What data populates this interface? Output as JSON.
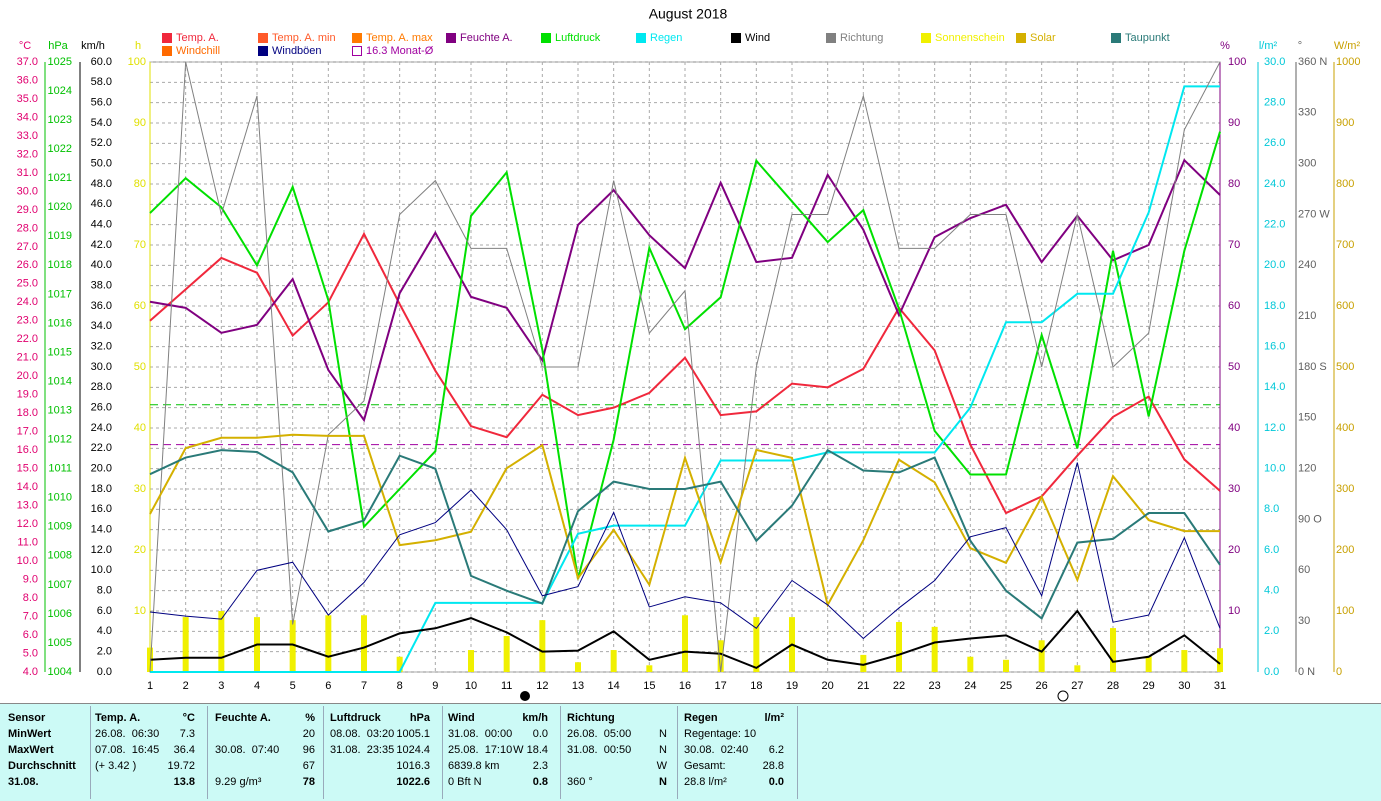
{
  "chart_data": {
    "type": "line",
    "title": "August 2018",
    "x": [
      1,
      2,
      3,
      4,
      5,
      6,
      7,
      8,
      9,
      10,
      11,
      12,
      13,
      14,
      15,
      16,
      17,
      18,
      19,
      20,
      21,
      22,
      23,
      24,
      25,
      26,
      27,
      28,
      29,
      30,
      31
    ],
    "xlim": [
      1,
      31
    ],
    "grid": true,
    "axes": [
      {
        "unit": "°C",
        "color": "#e0006f",
        "ylim": [
          4,
          37
        ],
        "yticks": [
          {
            "value": 4,
            "label": "4.0"
          },
          {
            "value": 5,
            "label": "5.0"
          },
          {
            "value": 6,
            "label": "6.0"
          },
          {
            "value": 7,
            "label": "7.0"
          },
          {
            "value": 8,
            "label": "8.0"
          },
          {
            "value": 9,
            "label": "9.0"
          },
          {
            "value": 10,
            "label": "10.0"
          },
          {
            "value": 11,
            "label": "11.0"
          },
          {
            "value": 12,
            "label": "12.0"
          },
          {
            "value": 13,
            "label": "13.0"
          },
          {
            "value": 14,
            "label": "14.0"
          },
          {
            "value": 15,
            "label": "15.0"
          },
          {
            "value": 16,
            "label": "16.0"
          },
          {
            "value": 17,
            "label": "17.0"
          },
          {
            "value": 18,
            "label": "18.0"
          },
          {
            "value": 19,
            "label": "19.0"
          },
          {
            "value": 20,
            "label": "20.0"
          },
          {
            "value": 21,
            "label": "21.0"
          },
          {
            "value": 22,
            "label": "22.0"
          },
          {
            "value": 23,
            "label": "23.0"
          },
          {
            "value": 24,
            "label": "24.0"
          },
          {
            "value": 25,
            "label": "25.0"
          },
          {
            "value": 26,
            "label": "26.0"
          },
          {
            "value": 27,
            "label": "27.0"
          },
          {
            "value": 28,
            "label": "28.0"
          },
          {
            "value": 29,
            "label": "29.0"
          },
          {
            "value": 30,
            "label": "30.0"
          },
          {
            "value": 31,
            "label": "31.0"
          },
          {
            "value": 32,
            "label": "32.0"
          },
          {
            "value": 33,
            "label": "33.0"
          },
          {
            "value": 34,
            "label": "34.0"
          },
          {
            "value": 35,
            "label": "35.0"
          },
          {
            "value": 36,
            "label": "36.0"
          },
          {
            "value": 37,
            "label": "37.0"
          }
        ]
      },
      {
        "unit": "hPa",
        "color": "#00c000",
        "ylim": [
          1004,
          1025
        ],
        "yticks": [
          1004,
          1005,
          1006,
          1007,
          1008,
          1009,
          1010,
          1011,
          1012,
          1013,
          1014,
          1015,
          1016,
          1017,
          1018,
          1019,
          1020,
          1021,
          1022,
          1023,
          1024,
          1025
        ]
      },
      {
        "unit": "km/h",
        "color": "#000000",
        "ylim": [
          0,
          60
        ],
        "yticks": [
          {
            "value": 0,
            "label": "0.0"
          },
          {
            "value": 2,
            "label": "2.0"
          },
          {
            "value": 4,
            "label": "4.0"
          },
          {
            "value": 6,
            "label": "6.0"
          },
          {
            "value": 8,
            "label": "8.0"
          },
          {
            "value": 10,
            "label": "10.0"
          },
          {
            "value": 12,
            "label": "12.0"
          },
          {
            "value": 14,
            "label": "14.0"
          },
          {
            "value": 16,
            "label": "16.0"
          },
          {
            "value": 18,
            "label": "18.0"
          },
          {
            "value": 20,
            "label": "20.0"
          },
          {
            "value": 22,
            "label": "22.0"
          },
          {
            "value": 24,
            "label": "24.0"
          },
          {
            "value": 26,
            "label": "26.0"
          },
          {
            "value": 28,
            "label": "28.0"
          },
          {
            "value": 30,
            "label": "30.0"
          },
          {
            "value": 32,
            "label": "32.0"
          },
          {
            "value": 34,
            "label": "34.0"
          },
          {
            "value": 36,
            "label": "36.0"
          },
          {
            "value": 38,
            "label": "38.0"
          },
          {
            "value": 40,
            "label": "40.0"
          },
          {
            "value": 42,
            "label": "42.0"
          },
          {
            "value": 44,
            "label": "44.0"
          },
          {
            "value": 46,
            "label": "46.0"
          },
          {
            "value": 48,
            "label": "48.0"
          },
          {
            "value": 50,
            "label": "50.0"
          },
          {
            "value": 52,
            "label": "52.0"
          },
          {
            "value": 54,
            "label": "54.0"
          },
          {
            "value": 56,
            "label": "56.0"
          },
          {
            "value": 58,
            "label": "58.0"
          },
          {
            "value": 60,
            "label": "60.0"
          }
        ]
      },
      {
        "unit": "h",
        "color": "#e0e000",
        "ylim": [
          0,
          100
        ],
        "yticks": [
          10,
          20,
          30,
          40,
          50,
          60,
          70,
          80,
          90,
          100
        ]
      },
      {
        "unit": "%",
        "color": "#800080",
        "ylim": [
          0,
          100
        ],
        "yticks": [
          10,
          20,
          30,
          40,
          50,
          60,
          70,
          80,
          90,
          100
        ]
      },
      {
        "unit": "l/m²",
        "color": "#00c8d8",
        "ylim": [
          0,
          30
        ],
        "yticks": [
          {
            "value": 0,
            "label": "0.0"
          },
          {
            "value": 2,
            "label": "2.0"
          },
          {
            "value": 4,
            "label": "4.0"
          },
          {
            "value": 6,
            "label": "6.0"
          },
          {
            "value": 8,
            "label": "8.0"
          },
          {
            "value": 10,
            "label": "10.0"
          },
          {
            "value": 12,
            "label": "12.0"
          },
          {
            "value": 14,
            "label": "14.0"
          },
          {
            "value": 16,
            "label": "16.0"
          },
          {
            "value": 18,
            "label": "18.0"
          },
          {
            "value": 20,
            "label": "20.0"
          },
          {
            "value": 22,
            "label": "22.0"
          },
          {
            "value": 24,
            "label": "24.0"
          },
          {
            "value": 26,
            "label": "26.0"
          },
          {
            "value": 28,
            "label": "28.0"
          },
          {
            "value": 30,
            "label": "30.0"
          }
        ]
      },
      {
        "unit": "°",
        "color": "#606060",
        "ylim": [
          0,
          360
        ],
        "yticks": [
          {
            "value": 0,
            "label": "0 N"
          },
          30,
          60,
          {
            "value": 90,
            "label": "90 O"
          },
          120,
          150,
          {
            "value": 180,
            "label": "180 S"
          },
          210,
          240,
          {
            "value": 270,
            "label": "270 W"
          },
          300,
          330,
          {
            "value": 360,
            "label": "360 N"
          }
        ]
      },
      {
        "unit": "W/m²",
        "color": "#c8a000",
        "ylim": [
          0,
          1000
        ],
        "yticks": [
          0,
          100,
          200,
          300,
          400,
          500,
          600,
          700,
          800,
          900,
          1000
        ]
      }
    ],
    "series": [
      {
        "name": "Temp. A.",
        "color": "#f0283c",
        "axis": 0,
        "type": "line",
        "values": [
          23.0,
          24.7,
          26.4,
          25.6,
          22.2,
          24.0,
          27.7,
          23.9,
          20.3,
          17.3,
          16.7,
          19.0,
          17.9,
          18.3,
          19.1,
          21.0,
          17.9,
          18.1,
          19.6,
          19.4,
          20.4,
          23.7,
          21.4,
          16.3,
          12.6,
          13.5,
          15.7,
          17.8,
          18.9,
          15.5,
          13.8
        ]
      },
      {
        "name": "Feuchte A.",
        "color": "#800080",
        "axis": 4,
        "type": "line",
        "values": [
          60.7,
          59.7,
          55.6,
          56.9,
          64.4,
          49.5,
          41.3,
          62.1,
          72.0,
          61.5,
          59.7,
          51.1,
          73.3,
          79.0,
          71.6,
          66.2,
          80.2,
          67.2,
          67.9,
          81.5,
          72.5,
          58.5,
          71.3,
          74.4,
          76.6,
          67.2,
          74.8,
          67.5,
          70.0,
          83.9,
          78.2
        ]
      },
      {
        "name": "Luftdruck",
        "color": "#00e000",
        "axis": 1,
        "type": "line",
        "values": [
          1019.8,
          1021.0,
          1020.0,
          1018.0,
          1020.7,
          1016.8,
          1009.0,
          1010.3,
          1011.6,
          1019.7,
          1021.2,
          1015.1,
          1007.2,
          1012.0,
          1018.6,
          1015.8,
          1016.9,
          1021.6,
          1020.2,
          1018.8,
          1019.9,
          1016.5,
          1012.3,
          1010.8,
          1010.8,
          1015.6,
          1011.7,
          1018.5,
          1012.8,
          1018.5,
          1022.6
        ]
      },
      {
        "name": "Regen",
        "color": "#00e8f0",
        "axis": 5,
        "type": "line",
        "values": [
          0,
          0,
          0,
          0,
          0,
          0,
          0,
          0,
          3.4,
          3.4,
          3.4,
          3.4,
          6.8,
          7.2,
          7.2,
          7.2,
          10.4,
          10.4,
          10.4,
          10.8,
          10.8,
          10.8,
          10.8,
          13.0,
          17.2,
          17.2,
          18.6,
          18.6,
          22.6,
          28.8,
          28.8
        ]
      },
      {
        "name": "Wind",
        "color": "#000000",
        "axis": 2,
        "type": "line",
        "values": [
          1.2,
          1.4,
          1.4,
          2.7,
          2.7,
          1.5,
          2.4,
          3.8,
          4.3,
          5.3,
          3.9,
          2.0,
          2.1,
          4.0,
          1.2,
          2.0,
          1.8,
          0.4,
          2.7,
          1.2,
          0.7,
          1.7,
          2.9,
          3.3,
          3.6,
          2.0,
          6.0,
          1.0,
          1.5,
          3.6,
          0.8
        ]
      },
      {
        "name": "Richtung",
        "color": "#808080",
        "axis": 6,
        "type": "line",
        "values": [
          0,
          360,
          270,
          340,
          28,
          140,
          160,
          270,
          290,
          250,
          250,
          180,
          180,
          290,
          200,
          225,
          0,
          180,
          270,
          270,
          340,
          250,
          250,
          270,
          270,
          180,
          270,
          180,
          200,
          320,
          360
        ]
      },
      {
        "name": "Sonnenschein",
        "color": "#f0f000",
        "axis": 3,
        "type": "bar",
        "values": [
          4,
          9,
          10,
          9,
          8.5,
          9.3,
          9.3,
          2.5,
          0,
          3.6,
          5.9,
          8.5,
          1.6,
          3.6,
          1.1,
          9.3,
          5.2,
          9,
          9,
          0,
          2.8,
          8.2,
          7.4,
          2.5,
          2,
          5.2,
          1.1,
          7.2,
          2.6,
          3.6,
          3.9
        ]
      },
      {
        "name": "Solar",
        "color": "#d4b000",
        "axis": 7,
        "type": "line",
        "values": [
          259,
          367,
          384,
          384,
          389,
          387,
          387,
          208,
          216,
          230,
          334,
          372,
          154,
          233,
          143,
          351,
          180,
          364,
          351,
          110,
          216,
          348,
          311,
          203,
          179,
          287,
          151,
          321,
          249,
          231,
          231
        ]
      },
      {
        "name": "Taupunkt",
        "color": "#2a7a78",
        "axis": 0,
        "type": "line",
        "values": [
          14.7,
          15.6,
          16.0,
          15.9,
          14.8,
          11.6,
          12.2,
          15.7,
          15.0,
          9.2,
          8.4,
          7.7,
          12.7,
          14.3,
          13.9,
          13.9,
          14.3,
          11.1,
          13.0,
          16.0,
          14.9,
          14.8,
          15.6,
          11.1,
          8.4,
          6.9,
          11.0,
          11.2,
          12.6,
          12.6,
          9.8
        ]
      },
      {
        "name": "Windböen",
        "color": "#000080",
        "axis": 2,
        "type": "line",
        "values": [
          5.9,
          5.5,
          5.2,
          10.0,
          10.8,
          5.6,
          8.8,
          13.5,
          14.7,
          17.9,
          14.0,
          7.5,
          8.4,
          15.7,
          6.4,
          7.4,
          6.8,
          4.3,
          9.0,
          6.6,
          3.3,
          6.3,
          9.0,
          13.3,
          14.2,
          7.5,
          20.6,
          4.9,
          5.6,
          13.2,
          4.3
        ]
      }
    ],
    "other_legend": [
      {
        "name": "Temp. A. min",
        "color": "#ff5a2a"
      },
      {
        "name": "Temp. A. max",
        "color": "#ff7a00"
      },
      {
        "name": "Windchill",
        "color": "#ff6a00"
      }
    ],
    "monthly_mean": {
      "label": "16.3 Monat-Ø",
      "value": 16.3,
      "axis": 0,
      "color": "#a000a0"
    },
    "pressure_line": {
      "value": 1013.2,
      "axis": 1,
      "color": "#00c000"
    }
  },
  "summary": {
    "labels": [
      "Sensor",
      "MinWert",
      "MaxWert",
      "Durchschnitt",
      "31.08."
    ],
    "blocks": [
      {
        "title": "Temp. A.",
        "unit": "°C",
        "rows": [
          [
            "26.08.  06:30",
            "7.3"
          ],
          [
            "07.08.  16:45",
            "36.4"
          ],
          [
            "(+ 3.42 )",
            "19.72"
          ],
          [
            null,
            "13.8"
          ]
        ]
      },
      {
        "title": "Feuchte A.",
        "unit": "%",
        "rows": [
          [
            null,
            "20"
          ],
          [
            "30.08.  07:40",
            "96"
          ],
          [
            null,
            "67"
          ],
          [
            "9.29 g/m³",
            "78"
          ]
        ]
      },
      {
        "title": "Luftdruck",
        "unit": "hPa",
        "rows": [
          [
            "08.08.  03:20",
            "1005.1"
          ],
          [
            "31.08.  23:35",
            "1024.4"
          ],
          [
            null,
            "1016.3"
          ],
          [
            null,
            "1022.6"
          ]
        ]
      },
      {
        "title": "Wind",
        "unit": "km/h",
        "rows": [
          [
            "31.08.  00:00",
            "0.0"
          ],
          [
            "25.08.  17:10",
            "W 18.4"
          ],
          [
            "6839.8 km",
            "2.3"
          ],
          [
            "0 Bft N",
            "0.8"
          ]
        ]
      },
      {
        "title": "Richtung",
        "unit": null,
        "rows": [
          [
            "26.08.  05:00",
            "N"
          ],
          [
            "31.08.  00:50",
            "N"
          ],
          [
            null,
            "W"
          ],
          [
            "360 °",
            "N"
          ]
        ]
      },
      {
        "title": "Regen",
        "unit": "l/m²",
        "rows": [
          [
            "Regentage: 10",
            null
          ],
          [
            "30.08.  02:40",
            "6.2"
          ],
          [
            "Gesamt:",
            "28.8"
          ],
          [
            "28.8 l/m²",
            "0.0"
          ]
        ]
      }
    ]
  }
}
